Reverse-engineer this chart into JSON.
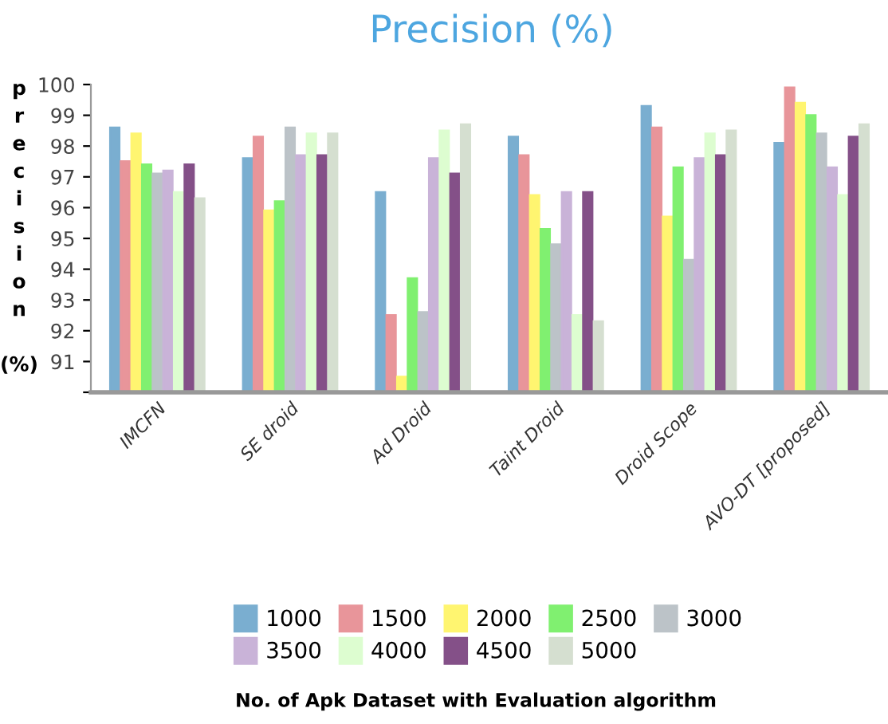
{
  "chart_data": {
    "type": "bar",
    "title": "Precision (%)",
    "ylabel": "precision (%)",
    "annotations": [
      "No. of Apk Dataset with Evaluation algorithm"
    ],
    "categories": [
      "IMCFN",
      "SE droid",
      "Ad Droid",
      "Taint Droid",
      "Droid Scope",
      "AVO-DT [proposed]"
    ],
    "series": [
      {
        "name": "1000",
        "color": "#7aaed0",
        "values": [
          98.6,
          97.6,
          96.5,
          98.3,
          99.3,
          98.1
        ]
      },
      {
        "name": "1500",
        "color": "#e8959a",
        "values": [
          97.5,
          98.3,
          92.5,
          97.7,
          98.6,
          99.9
        ]
      },
      {
        "name": "2000",
        "color": "#fff570",
        "values": [
          98.4,
          95.9,
          90.5,
          96.4,
          95.7,
          99.4
        ]
      },
      {
        "name": "2500",
        "color": "#80f070",
        "values": [
          97.4,
          96.2,
          93.7,
          95.3,
          97.3,
          99.0
        ]
      },
      {
        "name": "3000",
        "color": "#bcc3c8",
        "values": [
          97.1,
          98.6,
          92.6,
          94.8,
          94.3,
          98.4
        ]
      },
      {
        "name": "3500",
        "color": "#c9b3d8",
        "values": [
          97.2,
          97.7,
          97.6,
          96.5,
          97.6,
          97.3
        ]
      },
      {
        "name": "4000",
        "color": "#ddfdd0",
        "values": [
          96.5,
          98.4,
          98.5,
          92.5,
          98.4,
          96.4
        ]
      },
      {
        "name": "4500",
        "color": "#845088",
        "values": [
          97.4,
          97.7,
          97.1,
          96.5,
          97.7,
          98.3
        ]
      },
      {
        "name": "5000",
        "color": "#d5dfd0",
        "values": [
          96.3,
          98.4,
          98.7,
          92.3,
          98.5,
          98.7
        ]
      }
    ],
    "ylim": [
      90,
      100
    ],
    "yticks": [
      {
        "value": 90,
        "label": null
      },
      91,
      92,
      93,
      94,
      95,
      96,
      97,
      98,
      99,
      100
    ],
    "grid": false,
    "legend": "bottom"
  }
}
